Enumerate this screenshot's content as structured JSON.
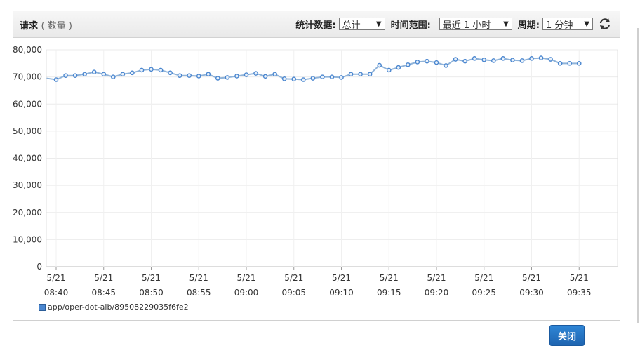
{
  "header": {
    "title": "请求",
    "unit": "( 数量 )",
    "stat_label": "统计数据:",
    "stat_value": "总计",
    "range_label": "时间范围:",
    "range_value": "最近 1 小时",
    "period_label": "周期:",
    "period_value": "1 分钟"
  },
  "footer": {
    "close_label": "关闭"
  },
  "chart_data": {
    "type": "line",
    "ylim": [
      0,
      80000
    ],
    "y_ticks": [
      "0",
      "10,000",
      "20,000",
      "30,000",
      "40,000",
      "50,000",
      "60,000",
      "70,000",
      "80,000"
    ],
    "x_ticks": [
      {
        "date": "5/21",
        "time": "08:40",
        "minute": 0
      },
      {
        "date": "5/21",
        "time": "08:45",
        "minute": 5
      },
      {
        "date": "5/21",
        "time": "08:50",
        "minute": 10
      },
      {
        "date": "5/21",
        "time": "08:55",
        "minute": 15
      },
      {
        "date": "5/21",
        "time": "09:00",
        "minute": 20
      },
      {
        "date": "5/21",
        "time": "09:05",
        "minute": 25
      },
      {
        "date": "5/21",
        "time": "09:10",
        "minute": 30
      },
      {
        "date": "5/21",
        "time": "09:15",
        "minute": 35
      },
      {
        "date": "5/21",
        "time": "09:20",
        "minute": 40
      },
      {
        "date": "5/21",
        "time": "09:25",
        "minute": 45
      },
      {
        "date": "5/21",
        "time": "09:30",
        "minute": 50
      },
      {
        "date": "5/21",
        "time": "09:35",
        "minute": 55
      }
    ],
    "grid": true,
    "legend_position": "bottom-left",
    "series": [
      {
        "name": "app/oper-dot-alb/89508229035f6fe2",
        "color": "#4a86cf",
        "values": [
          69500,
          69000,
          70500,
          70500,
          71000,
          71800,
          71000,
          70000,
          71000,
          71500,
          72500,
          72800,
          72500,
          71500,
          70500,
          70500,
          70300,
          71000,
          69500,
          69800,
          70300,
          70800,
          71300,
          70200,
          71000,
          69300,
          69200,
          69000,
          69500,
          70000,
          70000,
          69800,
          71000,
          71000,
          71000,
          74300,
          72500,
          73500,
          74500,
          75500,
          75800,
          75300,
          74200,
          76500,
          75800,
          76800,
          76300,
          76000,
          76800,
          76200,
          76000,
          76800,
          77000,
          76500,
          75000,
          75000,
          75000
        ]
      }
    ]
  }
}
